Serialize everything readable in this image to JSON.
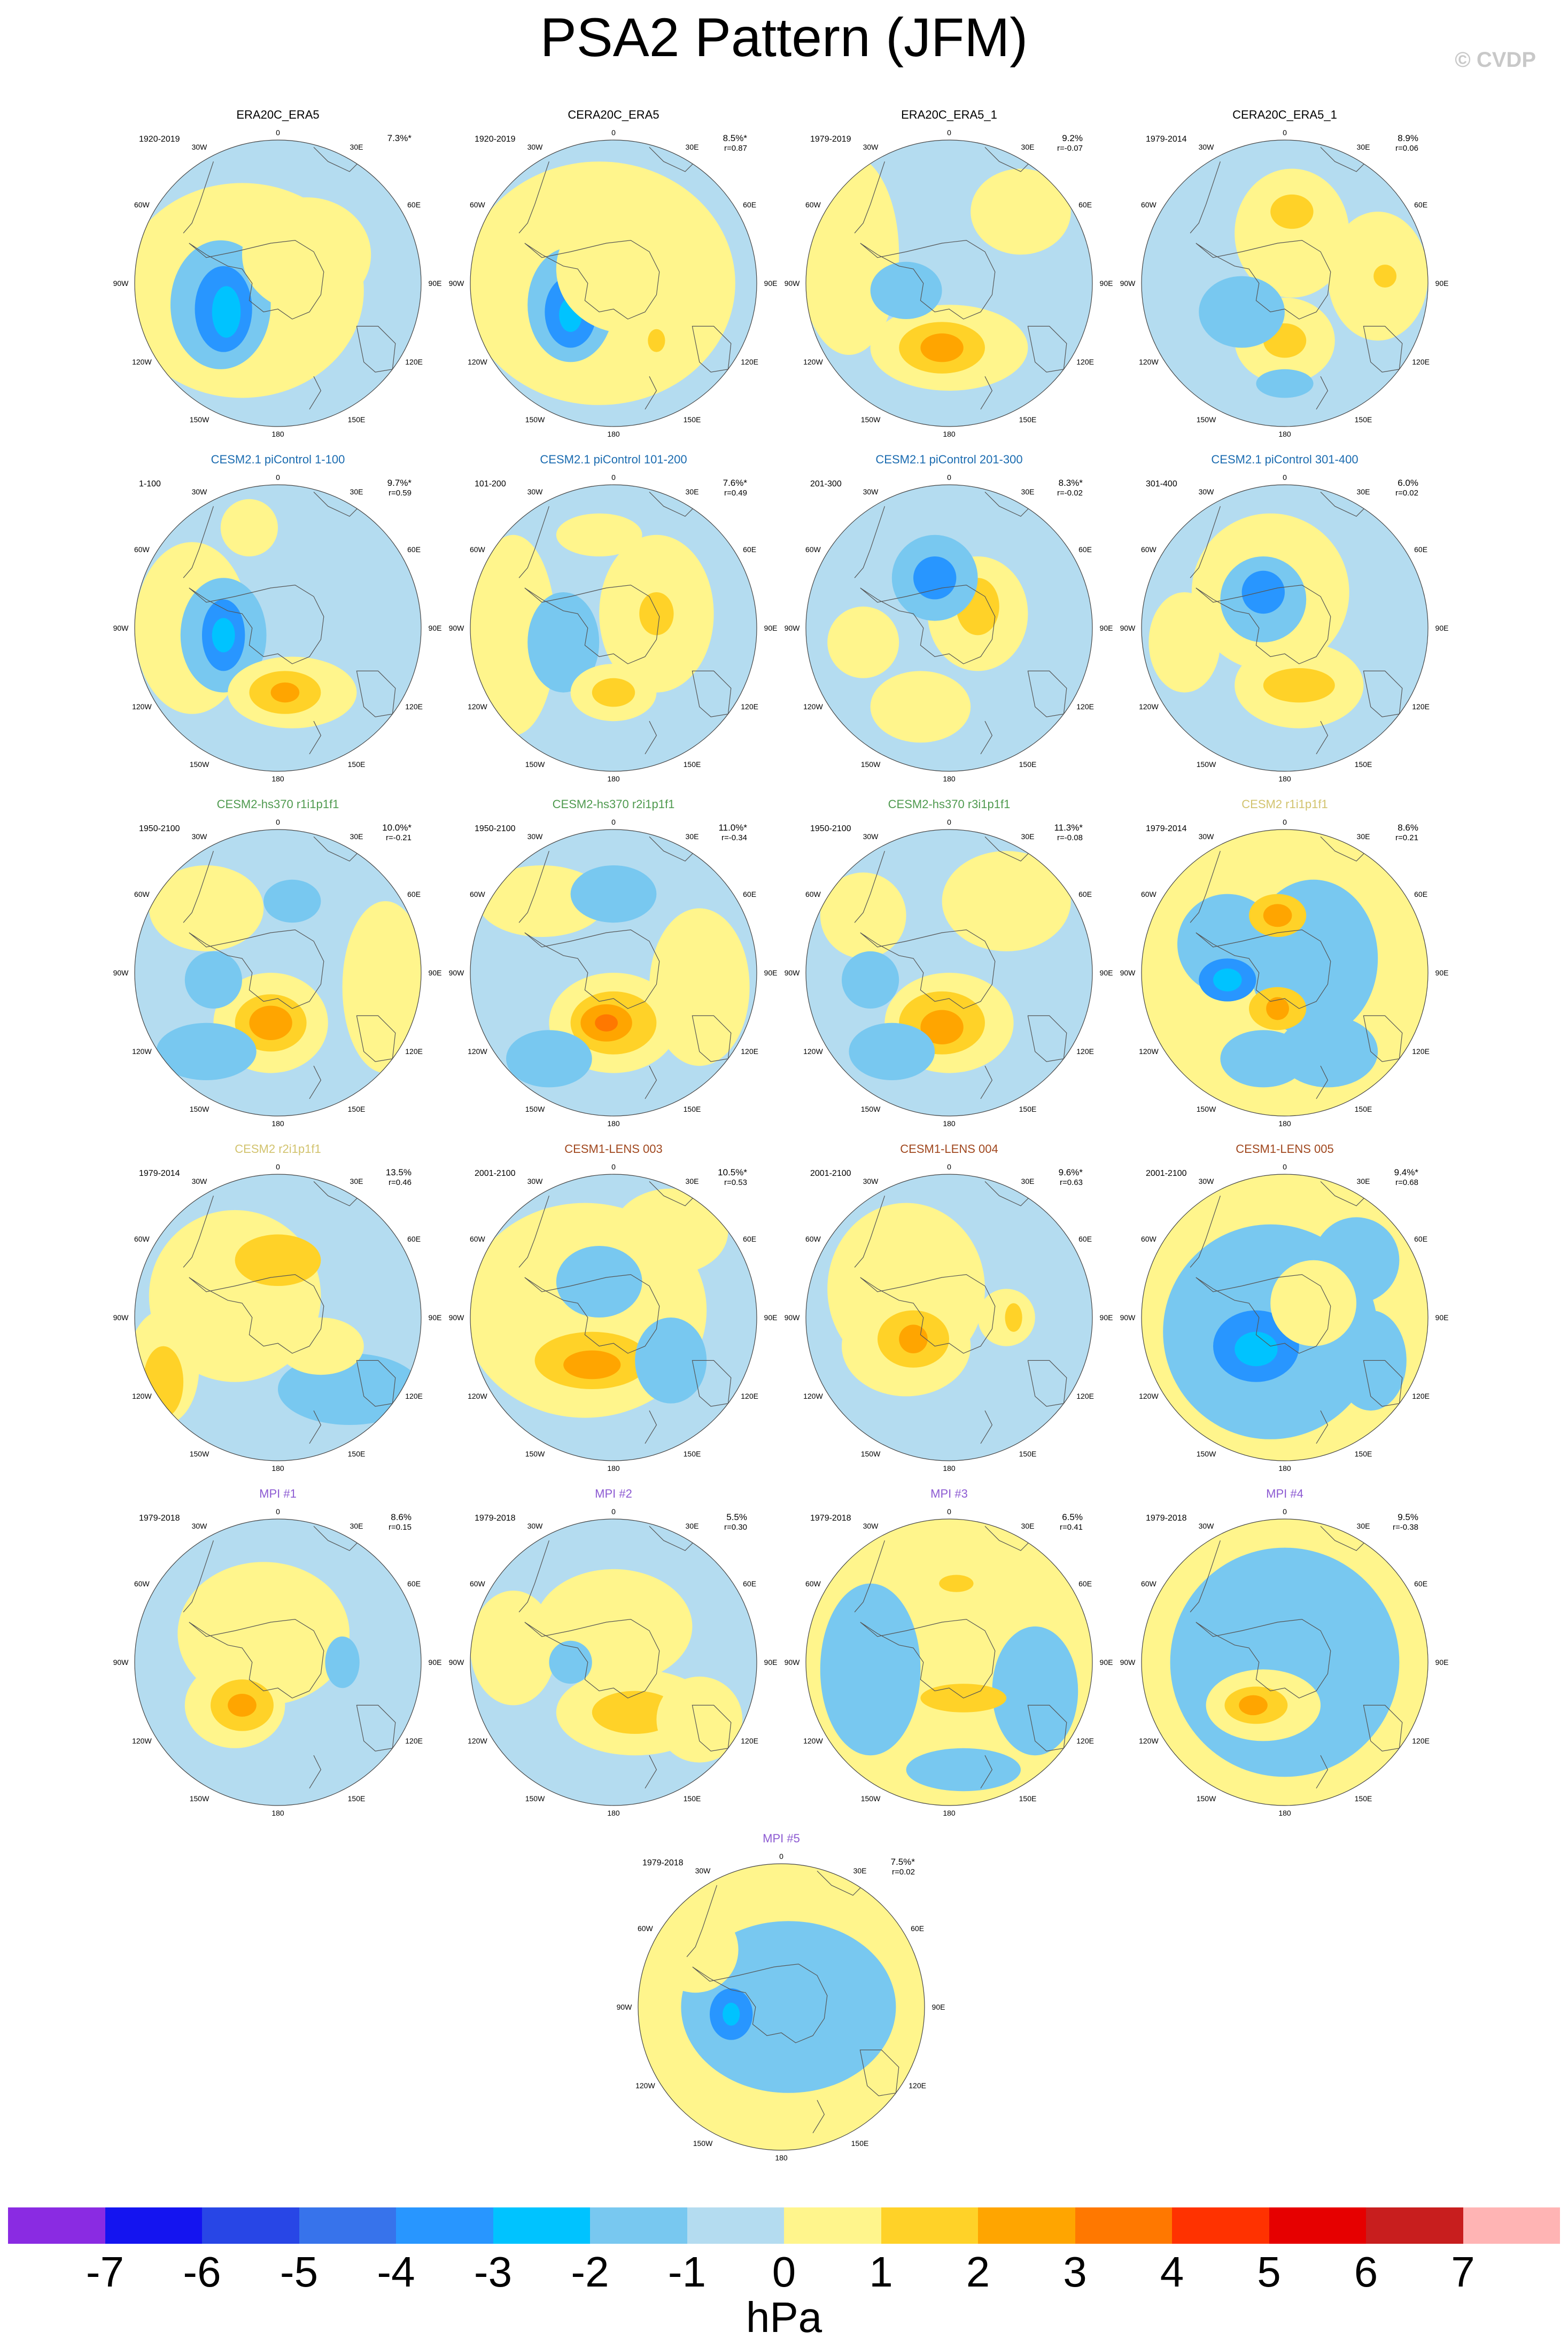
{
  "title": "PSA2 Pattern (JFM)",
  "watermark": "© CVDP",
  "lon_labels": [
    "0",
    "30E",
    "60E",
    "90E",
    "120E",
    "150E",
    "180",
    "150W",
    "120W",
    "90W",
    "60W",
    "30W"
  ],
  "colorbar": {
    "units": "hPa",
    "ticks": [
      "-7",
      "-6",
      "-5",
      "-4",
      "-3",
      "-2",
      "-1",
      "0",
      "1",
      "2",
      "3",
      "4",
      "5",
      "6",
      "7"
    ],
    "colors": [
      "#8a2be2",
      "#1414f0",
      "#2846e6",
      "#3773eb",
      "#2896ff",
      "#00c3ff",
      "#78c8f0",
      "#b4dcf0",
      "#fff58c",
      "#ffd228",
      "#ffa500",
      "#ff7800",
      "#ff3200",
      "#e60000",
      "#c81e1e",
      "#ffb4b4"
    ]
  },
  "panels": [
    {
      "title": "ERA20C_ERA5",
      "title_color": "#000000",
      "period": "1920-2019",
      "pct": "7.3%*",
      "r": ""
    },
    {
      "title": "CERA20C_ERA5",
      "title_color": "#000000",
      "period": "1920-2019",
      "pct": "8.5%*",
      "r": "r=0.87"
    },
    {
      "title": "ERA20C_ERA5_1",
      "title_color": "#000000",
      "period": "1979-2019",
      "pct": "9.2%",
      "r": "r=-0.07"
    },
    {
      "title": "CERA20C_ERA5_1",
      "title_color": "#000000",
      "period": "1979-2014",
      "pct": "8.9%",
      "r": "r=0.06"
    },
    {
      "title": "CESM2.1 piControl 1-100",
      "title_color": "#1a6bb0",
      "period": "1-100",
      "pct": "9.7%*",
      "r": "r=0.59"
    },
    {
      "title": "CESM2.1 piControl 101-200",
      "title_color": "#1a6bb0",
      "period": "101-200",
      "pct": "7.6%*",
      "r": "r=0.49"
    },
    {
      "title": "CESM2.1 piControl 201-300",
      "title_color": "#1a6bb0",
      "period": "201-300",
      "pct": "8.3%*",
      "r": "r=-0.02"
    },
    {
      "title": "CESM2.1 piControl 301-400",
      "title_color": "#1a6bb0",
      "period": "301-400",
      "pct": "6.0%",
      "r": "r=0.02"
    },
    {
      "title": "CESM2-hs370 r1i1p1f1",
      "title_color": "#4f9a4f",
      "period": "1950-2100",
      "pct": "10.0%*",
      "r": "r=-0.21"
    },
    {
      "title": "CESM2-hs370 r2i1p1f1",
      "title_color": "#4f9a4f",
      "period": "1950-2100",
      "pct": "11.0%*",
      "r": "r=-0.34"
    },
    {
      "title": "CESM2-hs370 r3i1p1f1",
      "title_color": "#4f9a4f",
      "period": "1950-2100",
      "pct": "11.3%*",
      "r": "r=-0.08"
    },
    {
      "title": "CESM2 r1i1p1f1",
      "title_color": "#d2c36e",
      "period": "1979-2014",
      "pct": "8.6%",
      "r": "r=0.21"
    },
    {
      "title": "CESM2 r2i1p1f1",
      "title_color": "#d2c36e",
      "period": "1979-2014",
      "pct": "13.5%",
      "r": "r=0.46"
    },
    {
      "title": "CESM1-LENS 003",
      "title_color": "#a0471e",
      "period": "2001-2100",
      "pct": "10.5%*",
      "r": "r=0.53"
    },
    {
      "title": "CESM1-LENS 004",
      "title_color": "#a0471e",
      "period": "2001-2100",
      "pct": "9.6%*",
      "r": "r=0.63"
    },
    {
      "title": "CESM1-LENS 005",
      "title_color": "#a0471e",
      "period": "2001-2100",
      "pct": "9.4%*",
      "r": "r=0.68"
    },
    {
      "title": "MPI #1",
      "title_color": "#8c5ad2",
      "period": "1979-2018",
      "pct": "8.6%",
      "r": "r=0.15"
    },
    {
      "title": "MPI #2",
      "title_color": "#8c5ad2",
      "period": "1979-2018",
      "pct": "5.5%",
      "r": "r=0.30"
    },
    {
      "title": "MPI #3",
      "title_color": "#8c5ad2",
      "period": "1979-2018",
      "pct": "6.5%",
      "r": "r=0.41"
    },
    {
      "title": "MPI #4",
      "title_color": "#8c5ad2",
      "period": "1979-2018",
      "pct": "9.5%",
      "r": "r=-0.38"
    },
    {
      "title": "MPI #5",
      "title_color": "#8c5ad2",
      "period": "1979-2018",
      "pct": "7.5%*",
      "r": "r=0.02"
    }
  ]
}
